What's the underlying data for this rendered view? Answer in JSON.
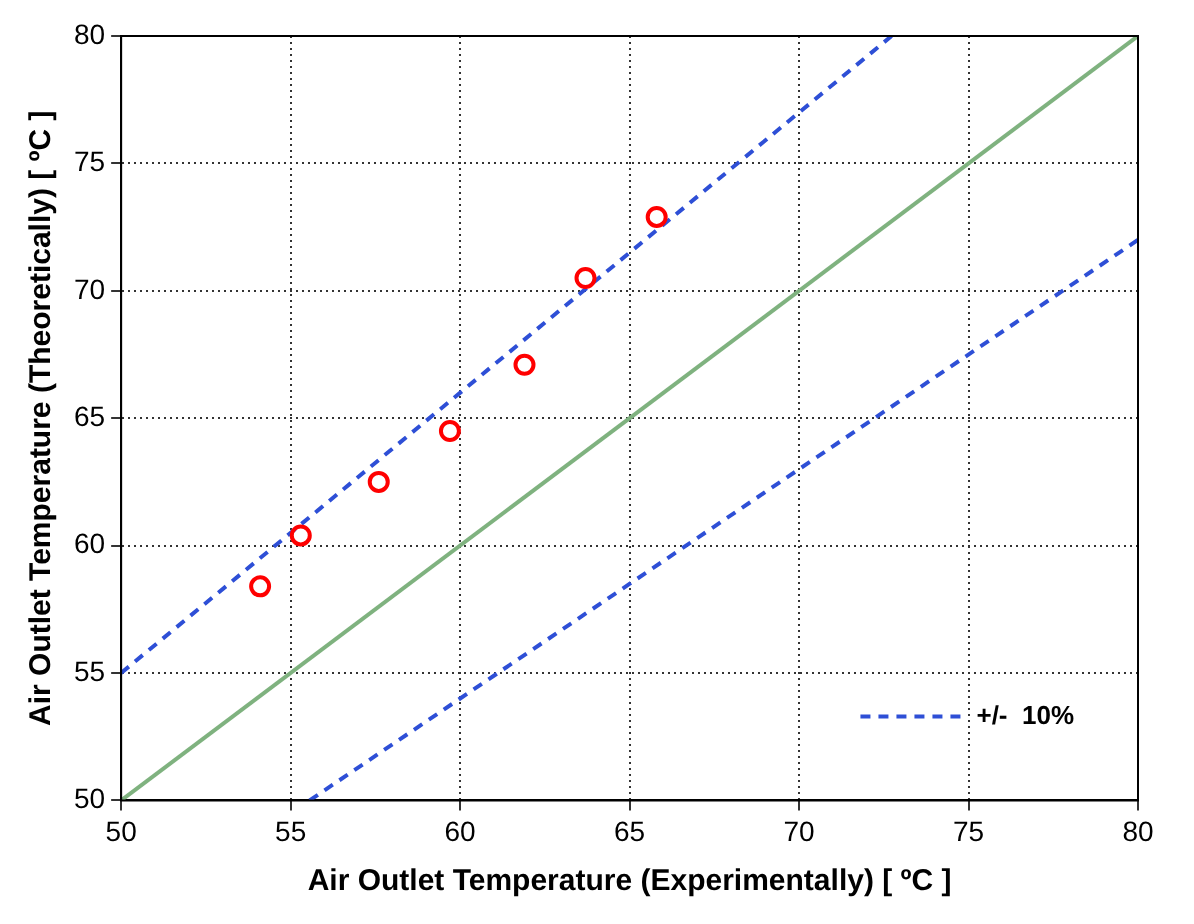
{
  "chart_data": {
    "type": "scatter",
    "xlabel": "Air Outlet Temperature (Experimentally) [ ºC ]",
    "ylabel": "Air Outlet Temperature (Theoretically) [ ºC ]",
    "x": [
      54.1,
      55.3,
      57.6,
      59.7,
      61.9,
      63.7,
      65.8
    ],
    "series": [
      {
        "color": "#ff0000",
        "marker": "circle",
        "values": [
          58.4,
          60.4,
          62.5,
          64.5,
          67.1,
          70.5,
          72.9
        ]
      },
      {
        "type": "line",
        "color": "#7fb27f",
        "line_style": "solid",
        "x": [
          50,
          80
        ],
        "values": [
          50,
          80
        ]
      },
      {
        "type": "line",
        "name": "+/-  10%",
        "color": "#2e4fd6",
        "line_style": "dashed",
        "x": [
          50,
          72.73
        ],
        "values": [
          55,
          80
        ]
      },
      {
        "type": "line",
        "color": "#2e4fd6",
        "line_style": "dashed",
        "x": [
          55.56,
          80
        ],
        "values": [
          50,
          72
        ]
      }
    ],
    "xlim": [
      50,
      80
    ],
    "xticks": [
      50,
      55,
      60,
      65,
      70,
      75,
      80
    ],
    "ylim": [
      50,
      80
    ],
    "yticks": [
      50,
      55,
      60,
      65,
      70,
      75,
      80
    ],
    "grid": true,
    "legend": "bottom right"
  }
}
